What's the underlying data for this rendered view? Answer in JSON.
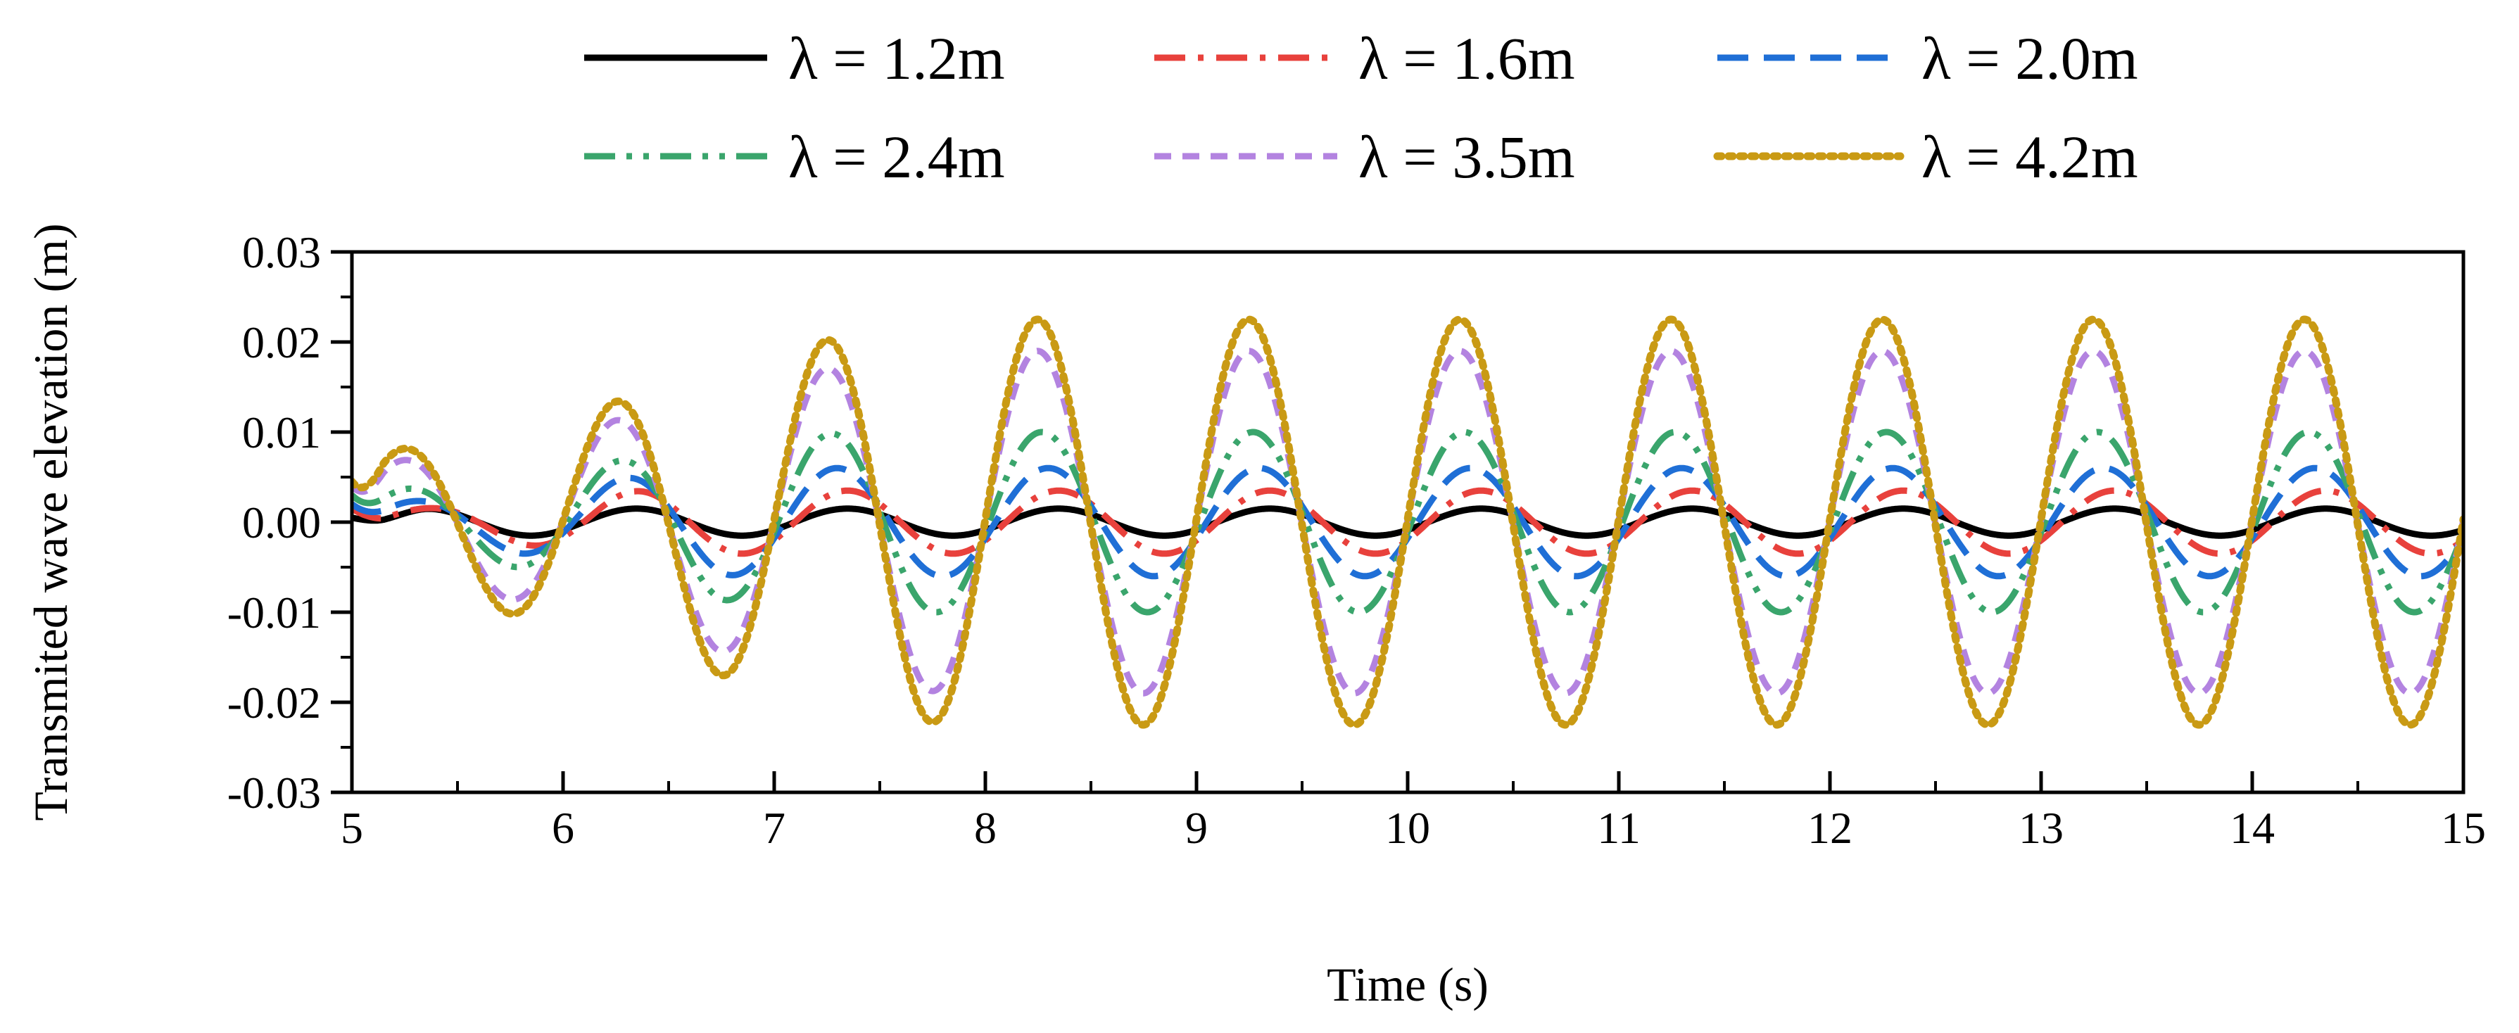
{
  "chart_data": {
    "type": "line",
    "title": "",
    "xlabel": "Time (s)",
    "ylabel": "Transmited wave elevation (m)",
    "xlim": [
      5,
      15
    ],
    "ylim": [
      -0.03,
      0.03
    ],
    "x_ticks": [
      5,
      6,
      7,
      8,
      9,
      10,
      11,
      12,
      13,
      14,
      15
    ],
    "x_tick_labels": [
      "5",
      "6",
      "7",
      "8",
      "9",
      "10",
      "11",
      "12",
      "13",
      "14",
      "15"
    ],
    "y_ticks": [
      -0.03,
      -0.02,
      -0.01,
      0,
      0.01,
      0.02,
      0.03
    ],
    "y_tick_labels": [
      "-0.03",
      "-0.02",
      "-0.01",
      "0.00",
      "0.01",
      "0.02",
      "0.03"
    ],
    "legend_position": "top-center",
    "grid": false,
    "series": [
      {
        "name": "λ = 1.2m",
        "color": "#000000",
        "dash": "solid",
        "amplitude": 0.0015,
        "period": 1.0,
        "phase": 0.3,
        "ramp_end": 5.4,
        "start_value": 0.0005
      },
      {
        "name": "λ = 1.6m",
        "color": "#e8413c",
        "dash": "dashdot",
        "amplitude": 0.0035,
        "period": 1.0,
        "phase": 0.3,
        "ramp_end": 6.5,
        "start_value": 0.0015
      },
      {
        "name": "λ = 2.0m",
        "color": "#1f6fd6",
        "dash": "dash",
        "amplitude": 0.006,
        "period": 1.0,
        "phase": 0.25,
        "ramp_end": 7.0,
        "start_value": 0.002
      },
      {
        "name": "λ = 2.4m",
        "color": "#3aa56c",
        "dash": "dashdotdot",
        "amplitude": 0.01,
        "period": 1.0,
        "phase": 0.22,
        "ramp_end": 7.5,
        "start_value": 0.003
      },
      {
        "name": "λ = 3.5m",
        "color": "#b383e0",
        "dash": "shortdash",
        "amplitude": 0.019,
        "period": 1.0,
        "phase": 0.2,
        "ramp_end": 8.0,
        "start_value": 0.004
      },
      {
        "name": "λ = 4.2m",
        "color": "#c99a14",
        "dash": "dot",
        "amplitude": 0.0225,
        "period": 1.0,
        "phase": 0.2,
        "ramp_end": 8.0,
        "start_value": 0.0045
      }
    ]
  }
}
